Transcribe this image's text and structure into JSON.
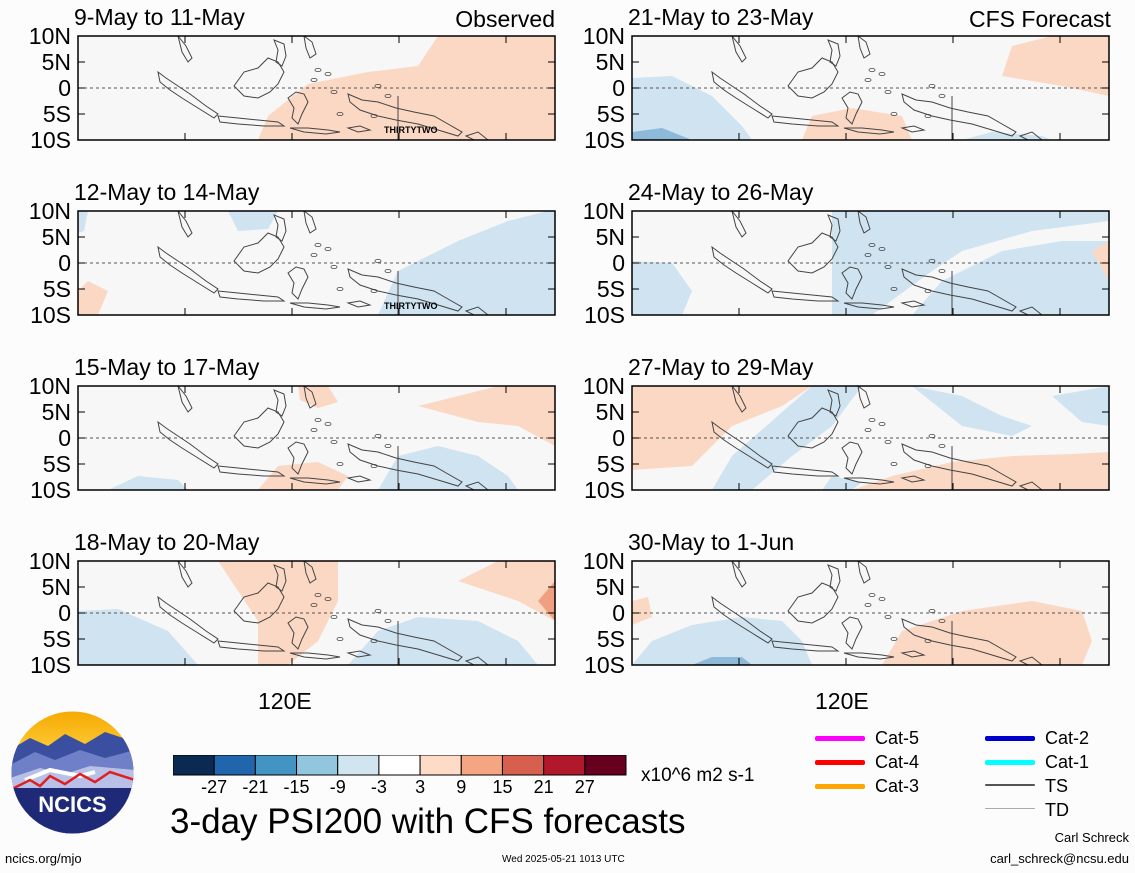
{
  "panels": [
    {
      "title": "9-May to 11-May",
      "tag": "Observed",
      "storm_label": "THIRTYTWO"
    },
    {
      "title": "12-May to 14-May",
      "tag": "",
      "storm_label": "THIRTYTWO"
    },
    {
      "title": "15-May to 17-May",
      "tag": "",
      "storm_label": ""
    },
    {
      "title": "18-May to 20-May",
      "tag": "",
      "storm_label": ""
    },
    {
      "title": "21-May to 23-May",
      "tag": "CFS Forecast",
      "storm_label": ""
    },
    {
      "title": "24-May to 26-May",
      "tag": "",
      "storm_label": ""
    },
    {
      "title": "27-May to 29-May",
      "tag": "",
      "storm_label": ""
    },
    {
      "title": "30-May to 1-Jun",
      "tag": "",
      "storm_label": ""
    }
  ],
  "y_axis_labels": [
    "10N",
    "5N",
    "0",
    "5S",
    "10S"
  ],
  "x_axis_label": "120E",
  "colorbar": {
    "labels": [
      "-27",
      "-21",
      "-15",
      "-9",
      "-3",
      "3",
      "9",
      "15",
      "21",
      "27"
    ],
    "colors": [
      "#0b2a52",
      "#2166ac",
      "#4393c3",
      "#92c5de",
      "#d1e5f0",
      "#ffffff",
      "#fddbc7",
      "#f4a582",
      "#d6604d",
      "#b2182b",
      "#67001f"
    ],
    "units": "x10^6 m2 s-1"
  },
  "main_title": "3-day PSI200 with CFS forecasts",
  "legend": [
    {
      "label": "Cat-5",
      "color": "#ff00ff"
    },
    {
      "label": "Cat-4",
      "color": "#ff0000"
    },
    {
      "label": "Cat-3",
      "color": "#ffa500"
    },
    {
      "label": "Cat-2",
      "color": "#0000cc"
    },
    {
      "label": "Cat-1",
      "color": "#00ffff"
    },
    {
      "label": "TS",
      "color": "#555555"
    },
    {
      "label": "TD",
      "color": "#aaaaaa"
    }
  ],
  "logo_text": "NCICS",
  "footer": {
    "url": "ncics.org/mjo",
    "timestamp": "Wed 2025-05-21 1013 UTC",
    "author": "Carl Schreck",
    "email": "carl_schreck@ncsu.edu"
  }
}
